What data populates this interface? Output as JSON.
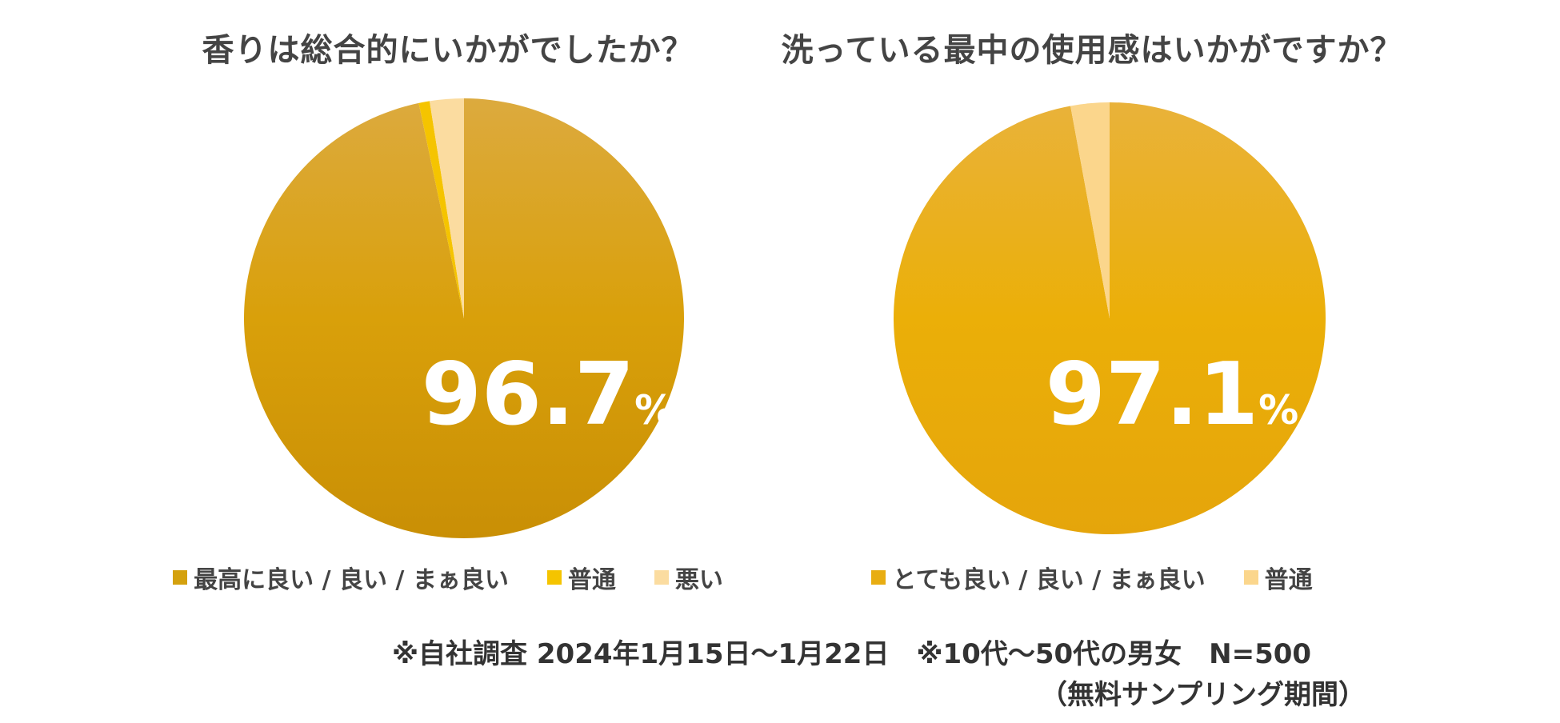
{
  "chart_data": [
    {
      "type": "pie",
      "title": "香りは総合的にいかがでしたか？",
      "categories": [
        "最高に良い / 良い / まぁ良い",
        "普通",
        "悪い"
      ],
      "values": [
        96.7,
        0.8,
        2.5
      ],
      "colors": [
        "#d4a10e",
        "#f5c400",
        "#fbdca0"
      ],
      "annotation": {
        "value": "96.7",
        "unit": "%"
      },
      "legend_position": "bottom"
    },
    {
      "type": "pie",
      "title": "洗っている最中の使用感はいかがですか？",
      "categories": [
        "とても良い / 良い / まぁ良い",
        "普通"
      ],
      "values": [
        97.1,
        2.9
      ],
      "colors": [
        "#e8ad12",
        "#fbd68c"
      ],
      "annotation": {
        "value": "97.1",
        "unit": "%"
      },
      "legend_position": "bottom"
    }
  ],
  "footnote": {
    "line1": "※自社調査 2024年1月15日～1月22日　※10代～50代の男女　N=500",
    "line2": "（無料サンプリング期間）"
  }
}
